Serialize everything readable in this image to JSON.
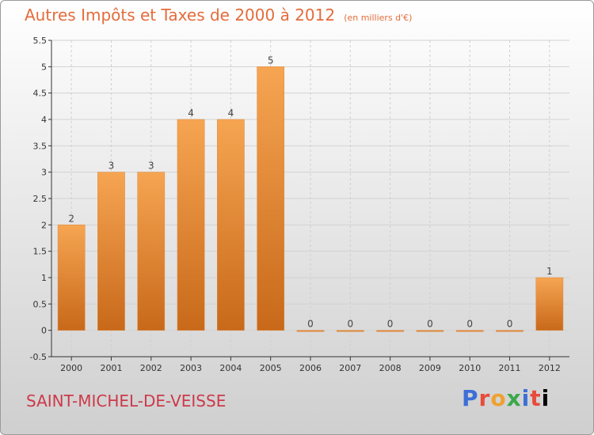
{
  "title": "Autres Impôts et Taxes de 2000 à 2012",
  "subtitle": "(en milliers d'€)",
  "commune": "SAINT-MICHEL-DE-VEISSE",
  "logo": [
    "P",
    "r",
    "o",
    "x",
    "i",
    "t",
    "i"
  ],
  "colors": {
    "bar_light": "#f6a552",
    "bar_dark": "#c8691a",
    "title": "#e46c3c",
    "commune": "#cc3a4a"
  },
  "chart_data": {
    "type": "bar",
    "title": "Autres Impôts et Taxes de 2000 à 2012",
    "subtitle": "(en milliers d'€)",
    "categories": [
      "2000",
      "2001",
      "2002",
      "2003",
      "2004",
      "2005",
      "2006",
      "2007",
      "2008",
      "2009",
      "2010",
      "2011",
      "2012"
    ],
    "values": [
      2,
      3,
      3,
      4,
      4,
      5,
      0,
      0,
      0,
      0,
      0,
      0,
      1
    ],
    "data_labels": [
      "2",
      "3",
      "3",
      "4",
      "4",
      "5",
      "0",
      "0",
      "0",
      "0",
      "0",
      "0",
      "1"
    ],
    "ylim": [
      -0.5,
      5.5
    ],
    "yticks": [
      "-0.5",
      "0",
      "0.5",
      "1",
      "1.5",
      "2",
      "2.5",
      "3",
      "3.5",
      "4",
      "4.5",
      "5",
      "5.5"
    ],
    "ytick_values": [
      -0.5,
      0,
      0.5,
      1,
      1.5,
      2,
      2.5,
      3,
      3.5,
      4,
      4.5,
      5,
      5.5
    ],
    "grid": true,
    "xlabel": "",
    "ylabel": ""
  }
}
